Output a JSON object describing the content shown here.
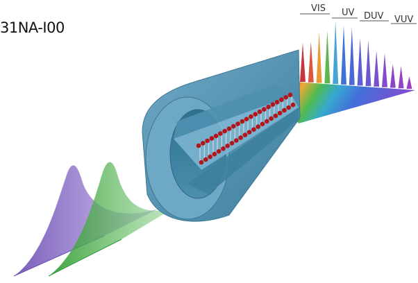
{
  "figure": {
    "corner_label": "31NA-I00"
  },
  "spectrum": {
    "bands": [
      "VIS",
      "UV",
      "DUV",
      "VUV"
    ],
    "colors": {
      "red": "#c0202a",
      "green": "#3aa63a",
      "blue": "#2b5fd0",
      "violet": "#7a36c8"
    }
  },
  "pulses": {
    "input_colors": [
      "#7b5cc4",
      "#3fa63f"
    ]
  },
  "fiber": {
    "jacket_color": "#5b9ab8",
    "atom_color": "#b3151a"
  }
}
